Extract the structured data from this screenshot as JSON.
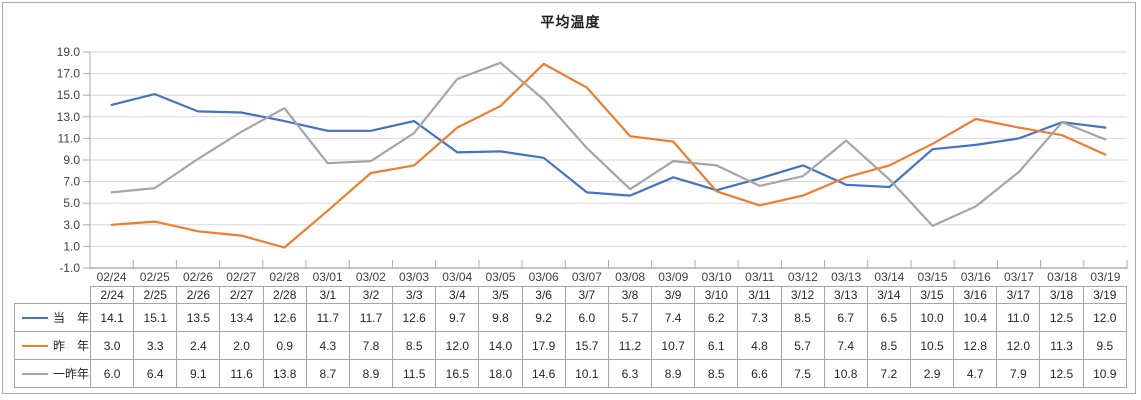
{
  "chart_data": {
    "type": "line",
    "title": "平均温度",
    "grid": true,
    "legend_position": "data-table-left",
    "y_axis": {
      "min": -1.0,
      "max": 19.0,
      "step": 2.0,
      "tick_labels": [
        "19.0",
        "17.0",
        "15.0",
        "13.0",
        "11.0",
        "9.0",
        "7.0",
        "5.0",
        "3.0",
        "1.0",
        "-1.0"
      ]
    },
    "x_axis_labels": [
      "02/24",
      "02/25",
      "02/26",
      "02/27",
      "02/28",
      "03/01",
      "03/02",
      "03/03",
      "03/04",
      "03/05",
      "03/06",
      "03/07",
      "03/08",
      "03/09",
      "03/10",
      "03/11",
      "03/12",
      "03/13",
      "03/14",
      "03/15",
      "03/16",
      "03/17",
      "03/18",
      "03/19"
    ],
    "table_header": [
      "2/24",
      "2/25",
      "2/26",
      "2/27",
      "2/28",
      "3/1",
      "3/2",
      "3/3",
      "3/4",
      "3/5",
      "3/6",
      "3/7",
      "3/8",
      "3/9",
      "3/10",
      "3/11",
      "3/12",
      "3/13",
      "3/14",
      "3/15",
      "3/16",
      "3/17",
      "3/18",
      "3/19"
    ],
    "series": [
      {
        "id": "current-year",
        "label": "当　年",
        "color": "#4472C4",
        "values": [
          14.1,
          15.1,
          13.5,
          13.4,
          12.6,
          11.7,
          11.7,
          12.6,
          9.7,
          9.8,
          9.2,
          6.0,
          5.7,
          7.4,
          6.2,
          7.3,
          8.5,
          6.7,
          6.5,
          10.0,
          10.4,
          11.0,
          12.5,
          12.0
        ]
      },
      {
        "id": "previous-year",
        "label": "昨　年",
        "color": "#ED7D31",
        "values": [
          3.0,
          3.3,
          2.4,
          2.0,
          0.9,
          4.3,
          7.8,
          8.5,
          12.0,
          14.0,
          17.9,
          15.7,
          11.2,
          10.7,
          6.1,
          4.8,
          5.7,
          7.4,
          8.5,
          10.5,
          12.8,
          12.0,
          11.3,
          9.5
        ]
      },
      {
        "id": "two-years-ago",
        "label": "一昨年",
        "color": "#A5A5A5",
        "values": [
          6.0,
          6.4,
          9.1,
          11.6,
          13.8,
          8.7,
          8.9,
          11.5,
          16.5,
          18.0,
          14.6,
          10.1,
          6.3,
          8.9,
          8.5,
          6.6,
          7.5,
          10.8,
          7.2,
          2.9,
          4.7,
          7.9,
          12.5,
          10.9
        ]
      }
    ]
  },
  "colors": {
    "gridline": "#D9D9D9",
    "axis_line": "#ADADAD",
    "tick": "#ADADAD",
    "axis_text": "#3F3F3F",
    "table_border": "#A6A6A6",
    "title_text": "#1F1F1F",
    "frame_border": "#ABABAB",
    "background": "#FFFFFF"
  }
}
